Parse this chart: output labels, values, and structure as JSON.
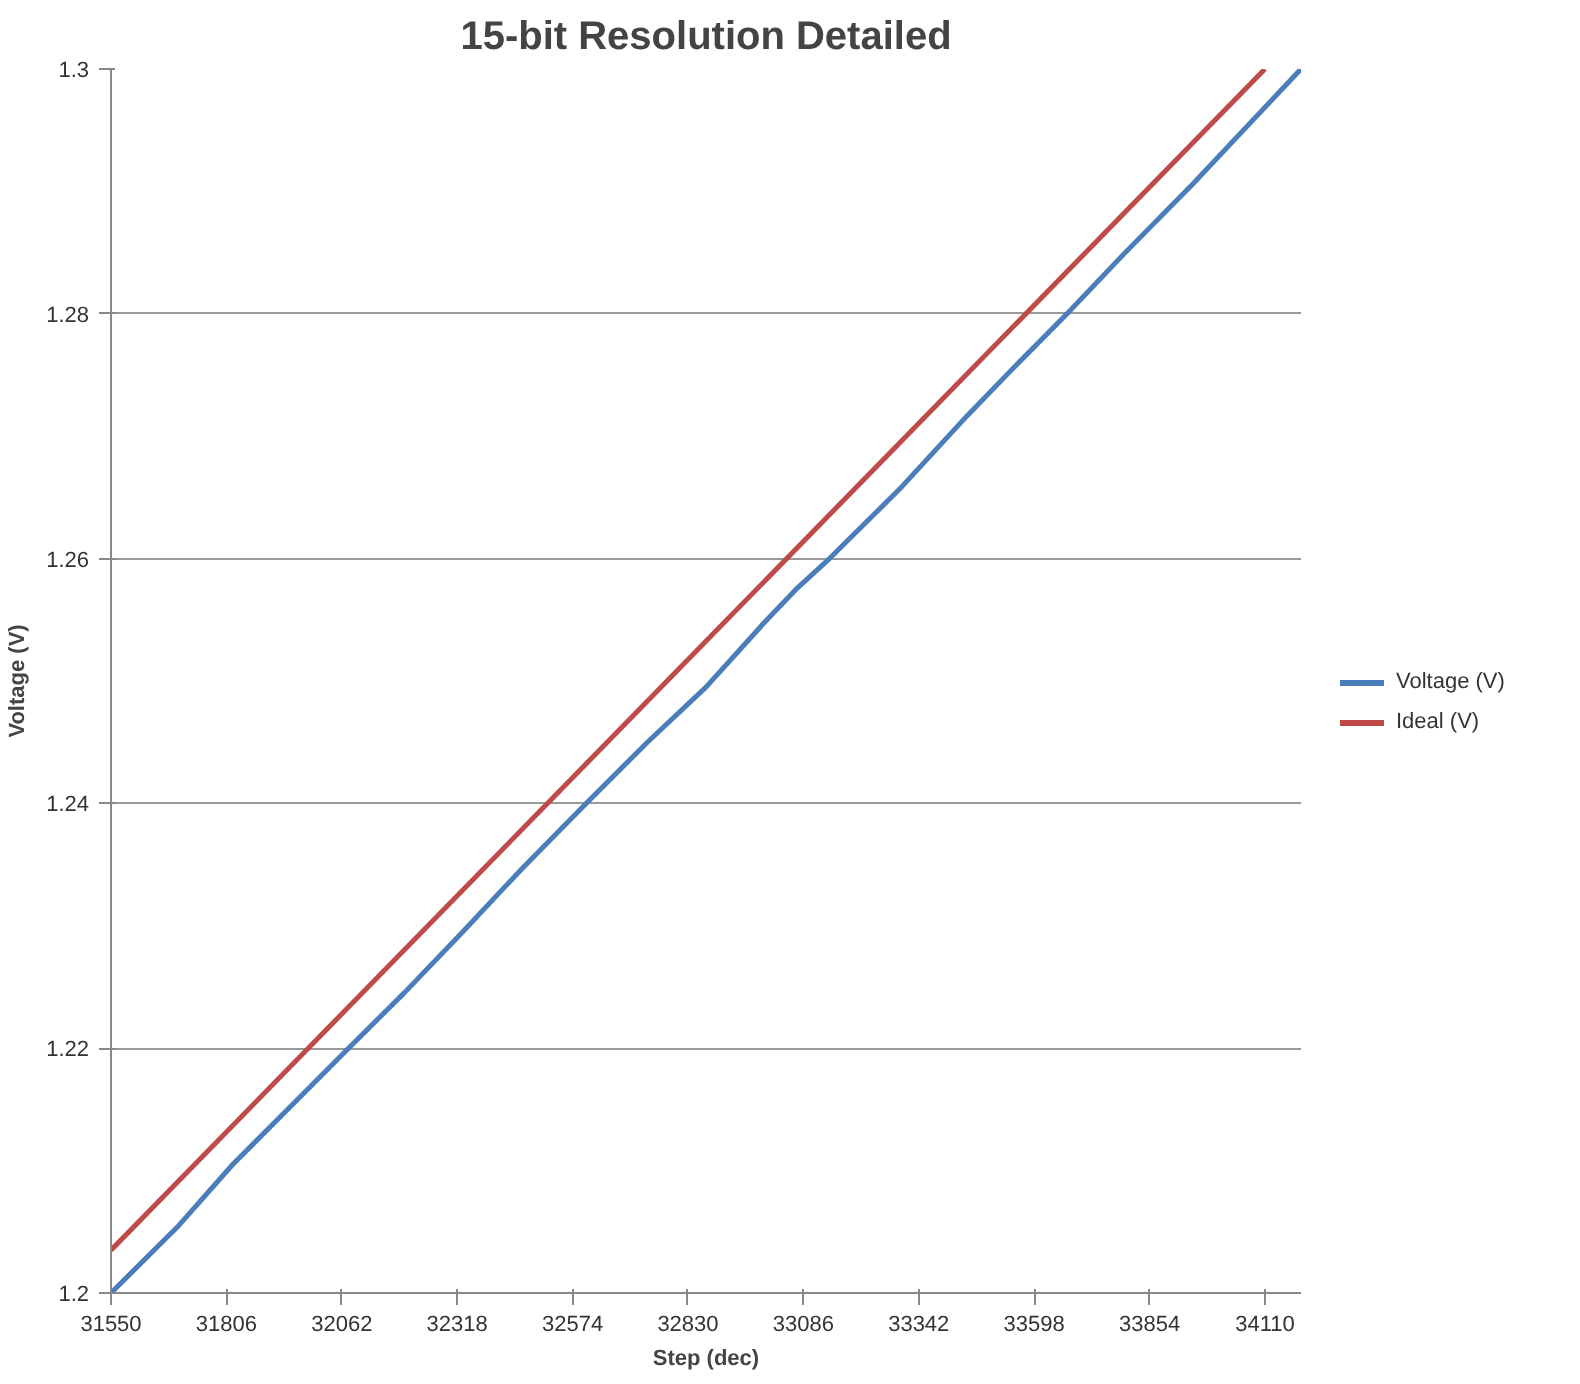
{
  "chart_data": {
    "type": "line",
    "title": "15-bit Resolution Detailed",
    "xlabel": "Step (dec)",
    "ylabel": "Voltage (V)",
    "xlim": [
      31550,
      34190
    ],
    "xticks": [
      31550,
      31806,
      32062,
      32318,
      32574,
      32830,
      33086,
      33342,
      33598,
      33854,
      34110
    ],
    "ylim": [
      1.2,
      1.3
    ],
    "yticks": [
      1.2,
      1.22,
      1.24,
      1.26,
      1.28,
      1.3
    ],
    "grid": "y",
    "legend": "right",
    "marker": "none",
    "line_style": "solid",
    "series": [
      {
        "name": "Voltage (V)",
        "color": "#4a7ebb",
        "x": [
          31550,
          31700,
          31820,
          31950,
          32077,
          32200,
          32330,
          32460,
          32604,
          32740,
          32870,
          33000,
          33070,
          33144,
          33300,
          33450,
          33550,
          33671,
          33800,
          33950,
          34080,
          34190
        ],
        "values": [
          1.2,
          1.2055,
          1.2105,
          1.2153,
          1.22,
          1.2245,
          1.2295,
          1.2346,
          1.24,
          1.245,
          1.2495,
          1.2548,
          1.2575,
          1.26,
          1.2657,
          1.2717,
          1.2755,
          1.28,
          1.285,
          1.2906,
          1.2957,
          1.3
        ]
      },
      {
        "name": "Ideal (V)",
        "color": "#be4b48",
        "x": [
          31550,
          34110
        ],
        "values": [
          1.2035,
          1.3
        ]
      }
    ]
  }
}
